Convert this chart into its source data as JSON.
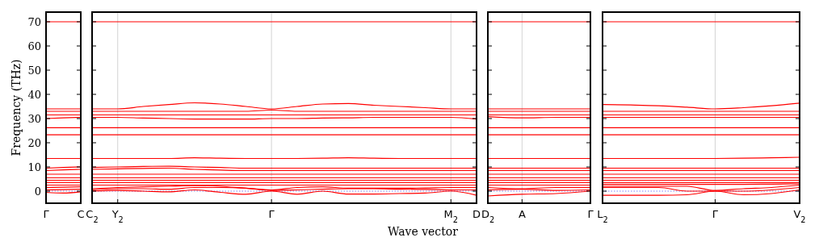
{
  "chart_data": [
    {
      "type": "line",
      "ylabel": "Frequency (THz)",
      "categories": [
        "Γ",
        null,
        "C"
      ],
      "ylim": [
        -5,
        74
      ],
      "yticks": [
        0,
        10,
        20,
        30,
        40,
        50,
        60,
        70
      ],
      "ref_lines": [
        {
          "axis": "y",
          "value": 0,
          "color": "#8080ff",
          "line_style": "dotted"
        }
      ],
      "series": [
        {
          "color": "#ff0000",
          "values": [
            -0.5,
            -0.8,
            -0.3
          ]
        },
        {
          "color": "#ff0000",
          "values": [
            0.5,
            0.6,
            0.8
          ]
        },
        {
          "color": "#ff0000",
          "values": [
            1.5,
            1.6,
            1.8
          ]
        },
        {
          "color": "#ff0000",
          "values": [
            2.5,
            2.5,
            2.5
          ]
        },
        {
          "color": "#ff0000",
          "values": [
            3.5,
            3.5,
            3.5
          ]
        },
        {
          "color": "#ff0000",
          "values": [
            4.5,
            4.5,
            4.5
          ]
        },
        {
          "color": "#ff0000",
          "values": [
            5.5,
            5.5,
            5.5
          ]
        },
        {
          "color": "#ff0000",
          "values": [
            7,
            7,
            7
          ]
        },
        {
          "color": "#ff0000",
          "values": [
            8.5,
            8.8,
            9
          ]
        },
        {
          "color": "#ff0000",
          "values": [
            9.5,
            9.8,
            10
          ]
        },
        {
          "color": "#ff0000",
          "values": [
            13.5,
            13.5,
            13.5
          ]
        },
        {
          "color": "#ff0000",
          "values": [
            23.3,
            23.3,
            23.3
          ]
        },
        {
          "color": "#ff0000",
          "values": [
            26.2,
            26.2,
            26.2
          ]
        },
        {
          "color": "#ff0000",
          "values": [
            30,
            30.3,
            30.5
          ]
        },
        {
          "color": "#ff0000",
          "values": [
            31.5,
            31.5,
            31.5
          ]
        },
        {
          "color": "#ff0000",
          "values": [
            33,
            33,
            33
          ]
        },
        {
          "color": "#ff0000",
          "values": [
            34,
            34,
            34
          ]
        },
        {
          "color": "#ff0000",
          "values": [
            70,
            70,
            70
          ]
        }
      ]
    },
    {
      "type": "line",
      "xlabel": "Wave vector",
      "categories": [
        "C$_{2}$",
        "Y$_{2}$",
        null,
        null,
        null,
        null,
        null,
        "Γ",
        null,
        null,
        null,
        null,
        null,
        null,
        "M$_{2}$",
        "D"
      ],
      "ylim": [
        -5,
        74
      ],
      "yticks": [
        0,
        10,
        20,
        30,
        40,
        50,
        60,
        70
      ],
      "tick_labels": "x",
      "ref_lines": [
        {
          "axis": "y",
          "value": 0,
          "color": "#8080ff",
          "line_style": "dotted"
        },
        {
          "axis": "x",
          "value": "Y$_{2}$",
          "color": "#c8c8c8"
        },
        {
          "axis": "x",
          "value": "Γ",
          "color": "#c8c8c8"
        },
        {
          "axis": "x",
          "value": "M$_{2}$",
          "color": "#c8c8c8"
        }
      ],
      "series": [
        {
          "color": "#ff0000",
          "values": [
            0,
            0.3,
            0,
            -0.3,
            0.5,
            -0.5,
            -1.3,
            0,
            -1.3,
            0,
            -1.2,
            -1.2,
            -1,
            -0.8,
            0,
            -1.7
          ]
        },
        {
          "color": "#ff0000",
          "values": [
            0.5,
            1,
            1,
            0.8,
            1.5,
            1.5,
            1.2,
            0.3,
            0.5,
            0.8,
            1,
            1,
            0.8,
            0.7,
            0.5,
            0.5
          ]
        },
        {
          "color": "#ff0000",
          "values": [
            1,
            1.5,
            1.8,
            2,
            2.3,
            2,
            1.2,
            0.5,
            1.5,
            1.8,
            1.2,
            1.2,
            1.2,
            1.3,
            1.5,
            1.5
          ]
        },
        {
          "color": "#ff0000",
          "values": [
            2.5,
            2.5,
            2.5,
            2.5,
            2.5,
            2.5,
            2.5,
            2.5,
            2.5,
            2.5,
            2.5,
            2.5,
            2.5,
            2.5,
            2.5,
            2.5
          ]
        },
        {
          "color": "#ff0000",
          "values": [
            3.5,
            3.5,
            3.5,
            3.5,
            3.5,
            3.5,
            3.5,
            3.5,
            3.5,
            3.5,
            3.5,
            3.5,
            3.5,
            3.5,
            3.5,
            3.5
          ]
        },
        {
          "color": "#ff0000",
          "values": [
            4.5,
            4.5,
            4.5,
            4.5,
            4.5,
            4.5,
            4.5,
            4.5,
            4.5,
            4.5,
            4.5,
            4.5,
            4.5,
            4.5,
            4.5,
            4.5
          ]
        },
        {
          "color": "#ff0000",
          "values": [
            5.5,
            5.5,
            5.5,
            5.5,
            5.5,
            5.5,
            5.5,
            5.5,
            5.5,
            5.5,
            5.5,
            5.5,
            5.5,
            5.5,
            5.5,
            5.5
          ]
        },
        {
          "color": "#ff0000",
          "values": [
            7,
            7,
            7,
            7,
            7,
            7,
            7,
            7,
            7,
            7,
            7,
            7,
            7,
            7,
            7,
            7
          ]
        },
        {
          "color": "#ff0000",
          "values": [
            9,
            9.2,
            9.4,
            9.5,
            9,
            8.7,
            8.5,
            8.5,
            8.5,
            8.5,
            8.5,
            8.5,
            8.5,
            8.5,
            8.5,
            8.5
          ]
        },
        {
          "color": "#ff0000",
          "values": [
            9.8,
            10,
            10.2,
            10.3,
            10,
            9.8,
            9.5,
            9.5,
            9.5,
            9.5,
            9.5,
            9.5,
            9.5,
            9.5,
            9.5,
            9.5
          ]
        },
        {
          "color": "#ff0000",
          "values": [
            13.5,
            13.5,
            13.5,
            13.5,
            13.8,
            13.6,
            13.5,
            13.5,
            13.5,
            13.6,
            13.8,
            13.6,
            13.5,
            13.5,
            13.5,
            13.5
          ]
        },
        {
          "color": "#ff0000",
          "values": [
            23.3,
            23.3,
            23.3,
            23.3,
            23.3,
            23.3,
            23.3,
            23.3,
            23.3,
            23.3,
            23.3,
            23.3,
            23.3,
            23.3,
            23.3,
            23.3
          ]
        },
        {
          "color": "#ff0000",
          "values": [
            26.2,
            26.2,
            26.2,
            26.2,
            26.2,
            26.2,
            26.2,
            26.2,
            26.2,
            26.2,
            26.2,
            26.2,
            26.2,
            26.2,
            26.2,
            26.2
          ]
        },
        {
          "color": "#ff0000",
          "values": [
            30.5,
            30.5,
            30.2,
            30,
            29.8,
            29.8,
            29.8,
            30,
            30,
            30.2,
            30.3,
            30.5,
            30.5,
            30.5,
            30.5,
            29.8
          ]
        },
        {
          "color": "#ff0000",
          "values": [
            31.5,
            31.5,
            31.5,
            31.5,
            31.5,
            31.5,
            31.5,
            31.5,
            31.5,
            31.5,
            31.5,
            31.5,
            31.5,
            31.5,
            31.5,
            31.5
          ]
        },
        {
          "color": "#ff0000",
          "values": [
            33,
            33,
            33,
            33,
            33,
            33,
            33,
            33.5,
            33,
            33,
            33,
            33,
            33,
            33,
            33,
            33
          ]
        },
        {
          "color": "#ff0000",
          "values": [
            34,
            34,
            35,
            35.8,
            36.5,
            36,
            35,
            34,
            35,
            36,
            36.2,
            35.5,
            35,
            34.5,
            34,
            34
          ]
        },
        {
          "color": "#ff0000",
          "values": [
            70,
            70,
            70,
            70,
            70,
            70,
            70,
            70,
            70,
            70,
            70,
            70,
            70,
            70,
            70,
            70
          ]
        }
      ]
    },
    {
      "type": "line",
      "categories": [
        "D$_{2}$",
        "A",
        null,
        "Γ"
      ],
      "ylim": [
        -5,
        74
      ],
      "yticks": [
        0,
        10,
        20,
        30,
        40,
        50,
        60,
        70
      ],
      "tick_labels": "x",
      "ref_lines": [
        {
          "axis": "y",
          "value": 0,
          "color": "#8080ff",
          "line_style": "dotted"
        },
        {
          "axis": "x",
          "value": "A",
          "color": "#c8c8c8"
        }
      ],
      "series": [
        {
          "color": "#ff0000",
          "values": [
            -2,
            -1.3,
            -1,
            0
          ]
        },
        {
          "color": "#ff0000",
          "values": [
            0.5,
            0.8,
            0.3,
            0.5
          ]
        },
        {
          "color": "#ff0000",
          "values": [
            1.5,
            1,
            1.5,
            1.5
          ]
        },
        {
          "color": "#ff0000",
          "values": [
            2.5,
            2.5,
            2.5,
            2.5
          ]
        },
        {
          "color": "#ff0000",
          "values": [
            3.5,
            3.5,
            3.5,
            3.5
          ]
        },
        {
          "color": "#ff0000",
          "values": [
            4.5,
            4.5,
            4.5,
            4.5
          ]
        },
        {
          "color": "#ff0000",
          "values": [
            5.5,
            5.5,
            5.5,
            5.5
          ]
        },
        {
          "color": "#ff0000",
          "values": [
            7,
            7,
            7,
            7
          ]
        },
        {
          "color": "#ff0000",
          "values": [
            8.5,
            8.5,
            8.5,
            8.5
          ]
        },
        {
          "color": "#ff0000",
          "values": [
            9.5,
            9.5,
            9.5,
            9.5
          ]
        },
        {
          "color": "#ff0000",
          "values": [
            13.5,
            13.5,
            13.5,
            13.5
          ]
        },
        {
          "color": "#ff0000",
          "values": [
            23.3,
            23.3,
            23.3,
            23.3
          ]
        },
        {
          "color": "#ff0000",
          "values": [
            26.2,
            26.2,
            26.2,
            26.2
          ]
        },
        {
          "color": "#ff0000",
          "values": [
            30.8,
            30.3,
            30.5,
            30.5
          ]
        },
        {
          "color": "#ff0000",
          "values": [
            31.5,
            31.5,
            31.5,
            31.5
          ]
        },
        {
          "color": "#ff0000",
          "values": [
            33,
            33,
            33,
            33
          ]
        },
        {
          "color": "#ff0000",
          "values": [
            34,
            34,
            34,
            34
          ]
        },
        {
          "color": "#ff0000",
          "values": [
            70,
            70,
            70,
            70
          ]
        }
      ]
    },
    {
      "type": "line",
      "categories": [
        "L$_{2}$",
        null,
        null,
        null,
        "Γ",
        null,
        null,
        "V$_{2}$"
      ],
      "ylim": [
        -5,
        74
      ],
      "yticks": [
        0,
        10,
        20,
        30,
        40,
        50,
        60,
        70
      ],
      "tick_labels": "x",
      "ref_lines": [
        {
          "axis": "y",
          "value": 0,
          "color": "#8080ff",
          "line_style": "dotted"
        },
        {
          "axis": "x",
          "value": "Γ",
          "color": "#c8c8c8"
        }
      ],
      "series": [
        {
          "color": "#ff0000",
          "values": [
            -1.7,
            -1.7,
            -1.7,
            -1.5,
            0,
            -1.5,
            -1,
            0.5
          ]
        },
        {
          "color": "#ff0000",
          "values": [
            1.5,
            1.5,
            1.5,
            0,
            0,
            0,
            0.5,
            1.5
          ]
        },
        {
          "color": "#ff0000",
          "values": [
            2,
            2,
            2,
            2,
            0.3,
            1,
            1.5,
            2.5
          ]
        },
        {
          "color": "#ff0000",
          "values": [
            2.8,
            2.8,
            2.8,
            2.8,
            2.8,
            2.8,
            2.9,
            3
          ]
        },
        {
          "color": "#ff0000",
          "values": [
            3.5,
            3.5,
            3.5,
            3.5,
            3.5,
            3.5,
            3.5,
            3.5
          ]
        },
        {
          "color": "#ff0000",
          "values": [
            4.5,
            4.5,
            4.5,
            4.5,
            4.5,
            4.5,
            4.5,
            4.5
          ]
        },
        {
          "color": "#ff0000",
          "values": [
            5.5,
            5.5,
            5.5,
            5.5,
            5.5,
            5.5,
            5.5,
            5.5
          ]
        },
        {
          "color": "#ff0000",
          "values": [
            7,
            7,
            7,
            7,
            7,
            7,
            7,
            7
          ]
        },
        {
          "color": "#ff0000",
          "values": [
            8.5,
            8.5,
            8.5,
            8.5,
            8.5,
            8.5,
            8.5,
            8.5
          ]
        },
        {
          "color": "#ff0000",
          "values": [
            9.5,
            9.5,
            9.5,
            9.5,
            9.5,
            9.5,
            9.5,
            9.5
          ]
        },
        {
          "color": "#ff0000",
          "values": [
            13.5,
            13.5,
            13.5,
            13.5,
            13.5,
            13.6,
            13.8,
            14
          ]
        },
        {
          "color": "#ff0000",
          "values": [
            23.3,
            23.3,
            23.3,
            23.3,
            23.3,
            23.3,
            23.3,
            23.3
          ]
        },
        {
          "color": "#ff0000",
          "values": [
            26.2,
            26.2,
            26.2,
            26.2,
            26.2,
            26.2,
            26.2,
            26.2
          ]
        },
        {
          "color": "#ff0000",
          "values": [
            30.5,
            30.5,
            30.5,
            30.5,
            30.5,
            30.5,
            30.5,
            30.5
          ]
        },
        {
          "color": "#ff0000",
          "values": [
            31.5,
            31.5,
            31.5,
            31.5,
            31.5,
            31.5,
            31.5,
            31.5
          ]
        },
        {
          "color": "#ff0000",
          "values": [
            33,
            33,
            33,
            33,
            33,
            33,
            33,
            33
          ]
        },
        {
          "color": "#ff0000",
          "values": [
            35.8,
            35.6,
            35.3,
            34.7,
            34,
            34.5,
            35.3,
            36.4
          ]
        },
        {
          "color": "#ff0000",
          "values": [
            70,
            70,
            70,
            70,
            70,
            70,
            70,
            70
          ]
        }
      ]
    }
  ]
}
